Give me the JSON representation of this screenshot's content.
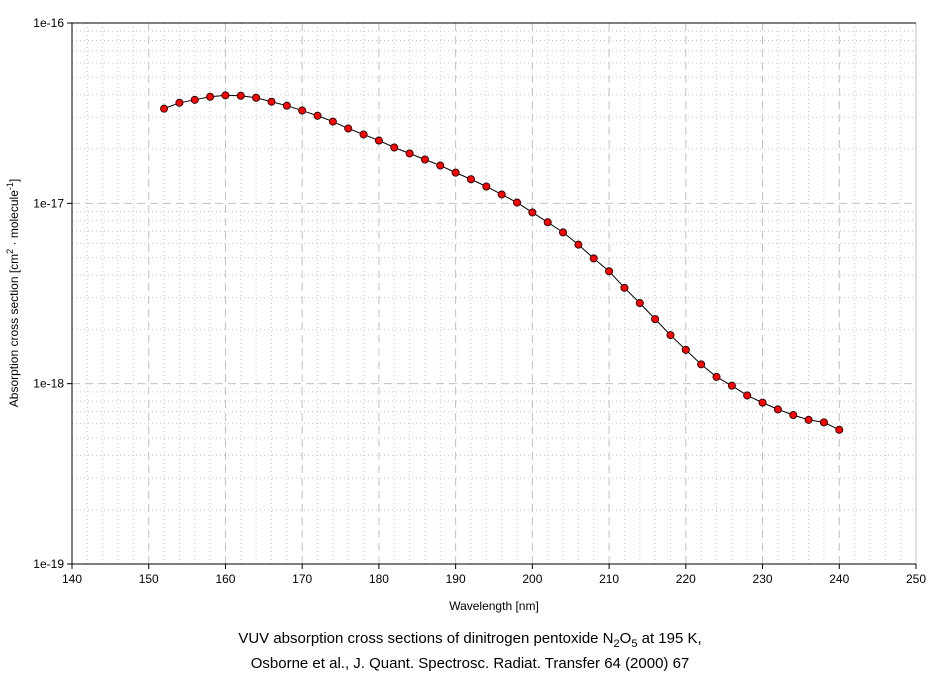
{
  "chart_data": {
    "type": "line",
    "title": "",
    "xlabel": "Wavelength [nm]",
    "ylabel_main": "Absorption cross section [cm",
    "ylabel_sup1": "2",
    "ylabel_mid": " · molecule",
    "ylabel_sup2": "-1",
    "ylabel_end": "]",
    "xlim": [
      140,
      250
    ],
    "ylim": [
      1e-19,
      1e-16
    ],
    "yscale": "log",
    "grid": true,
    "x_ticks": [
      "140",
      "150",
      "160",
      "170",
      "180",
      "190",
      "200",
      "210",
      "220",
      "230",
      "240",
      "250"
    ],
    "y_ticks": [
      "1e-19",
      "1e-18",
      "1e-17",
      "1e-16"
    ],
    "series": [
      {
        "name": "N2O5 195 K",
        "marker_color": "#ff0000",
        "x": [
          152,
          154,
          156,
          158,
          160,
          162,
          164,
          166,
          168,
          170,
          172,
          174,
          176,
          178,
          180,
          182,
          184,
          186,
          188,
          190,
          192,
          194,
          196,
          198,
          200,
          202,
          204,
          206,
          208,
          210,
          212,
          214,
          216,
          218,
          220,
          222,
          224,
          226,
          228,
          230,
          232,
          234,
          236,
          238,
          240
        ],
        "y": [
          3.35e-17,
          3.61e-17,
          3.75e-17,
          3.9e-17,
          3.97e-17,
          3.95e-17,
          3.85e-17,
          3.66e-17,
          3.48e-17,
          3.27e-17,
          3.06e-17,
          2.84e-17,
          2.6e-17,
          2.41e-17,
          2.23e-17,
          2.04e-17,
          1.89e-17,
          1.75e-17,
          1.62e-17,
          1.48e-17,
          1.36e-17,
          1.24e-17,
          1.12e-17,
          1.01e-17,
          8.9e-18,
          7.85e-18,
          6.9e-18,
          5.9e-18,
          4.95e-18,
          4.2e-18,
          3.4e-18,
          2.8e-18,
          2.28e-18,
          1.86e-18,
          1.54e-18,
          1.28e-18,
          1.09e-18,
          9.75e-19,
          8.6e-19,
          7.85e-19,
          7.2e-19,
          6.7e-19,
          6.3e-19,
          6.1e-19,
          5.55e-19
        ]
      }
    ],
    "caption": {
      "line1_pre": "VUV absorption cross sections of dinitrogen pentoxide N",
      "sub1": "2",
      "line1_mid": "O",
      "sub2": "5",
      "line1_post": " at 195 K,",
      "line2": "Osborne et al., J. Quant. Spectrosc. Radiat. Transfer 64 (2000) 67"
    }
  }
}
